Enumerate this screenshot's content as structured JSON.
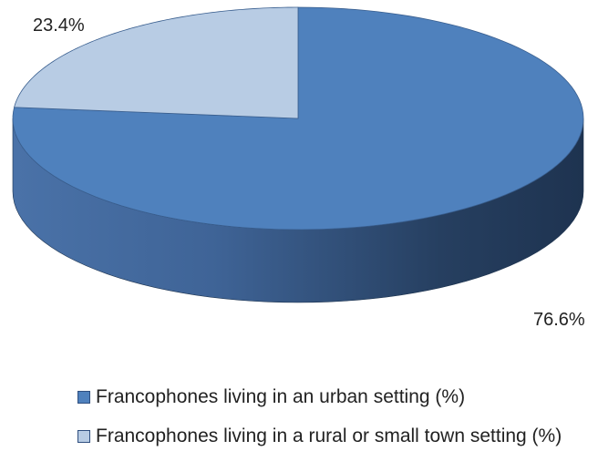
{
  "chart_data": {
    "type": "pie",
    "style": "3d",
    "categories": [
      "Francophones living in an urban setting (%)",
      "Francophones living in a rural or small town setting (%)"
    ],
    "values": [
      76.6,
      23.4
    ],
    "data_labels": [
      "76.6%",
      "23.4%"
    ],
    "colors": [
      "#4f81bd",
      "#b8cce4"
    ],
    "side_colors": [
      "#2a4a78",
      "#6f8fb5"
    ],
    "legend_position": "bottom"
  }
}
